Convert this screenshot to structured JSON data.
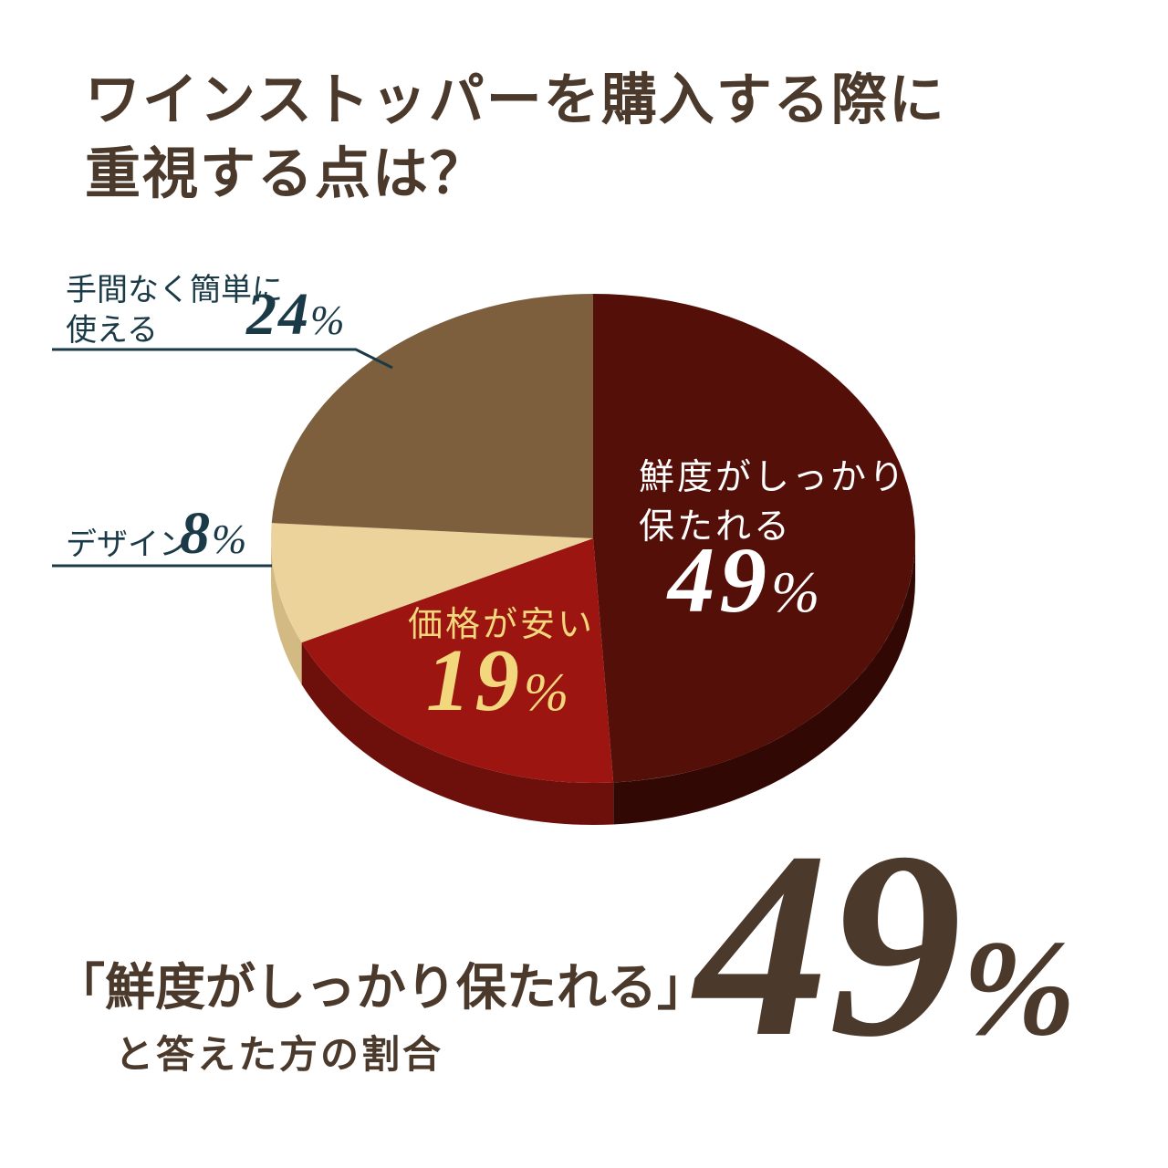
{
  "title": {
    "line1": "ワインストッパーを購入する際に",
    "line2": "重視する点は？"
  },
  "chart_data": {
    "type": "pie",
    "style": "3d",
    "title": "ワインストッパーを購入する際に重視する点は？",
    "start_angle_deg": 0,
    "direction": "clockwise",
    "unit": "%",
    "segments": [
      {
        "key": "freshness",
        "label": "鮮度がしっかり保たれる",
        "value": 49,
        "color": "#541008",
        "side_color": "#310804",
        "label_color": "#ffffff"
      },
      {
        "key": "price",
        "label": "価格が安い",
        "value": 19,
        "color": "#9c1511",
        "side_color": "#6d0f0b",
        "label_color": "#f3d77c"
      },
      {
        "key": "design",
        "label": "デザイン",
        "value": 8,
        "color": "#ebd39b",
        "side_color": "#d3ba82",
        "label_color": "#1b3a47"
      },
      {
        "key": "ease",
        "label": "手間なく簡単に使える",
        "value": 24,
        "color": "#7d5f3e",
        "side_color": "#564127",
        "label_color": "#1b3a47"
      }
    ]
  },
  "slice_labels": {
    "freshness": {
      "line1": "鮮度がしっかり",
      "line2": "保たれる",
      "value": "49",
      "unit": "%"
    },
    "price": {
      "line1": "価格が安い",
      "value": "19",
      "unit": "%"
    },
    "design": {
      "line1": "デザイン",
      "value": "8",
      "unit": "%"
    },
    "ease": {
      "line1": "手間なく簡単に",
      "line2": "使える",
      "value": "24",
      "unit": "%"
    }
  },
  "footer": {
    "quote": "「鮮度がしっかり保たれる」",
    "caption": "と答えた方の割合",
    "value": "49",
    "unit": "%"
  },
  "colors": {
    "background": "#ffffff",
    "title_text": "#4b392b",
    "teal_label": "#1b3a47",
    "gold_label": "#f3d77c",
    "white_label": "#ffffff",
    "footer_text": "#4b392b"
  }
}
